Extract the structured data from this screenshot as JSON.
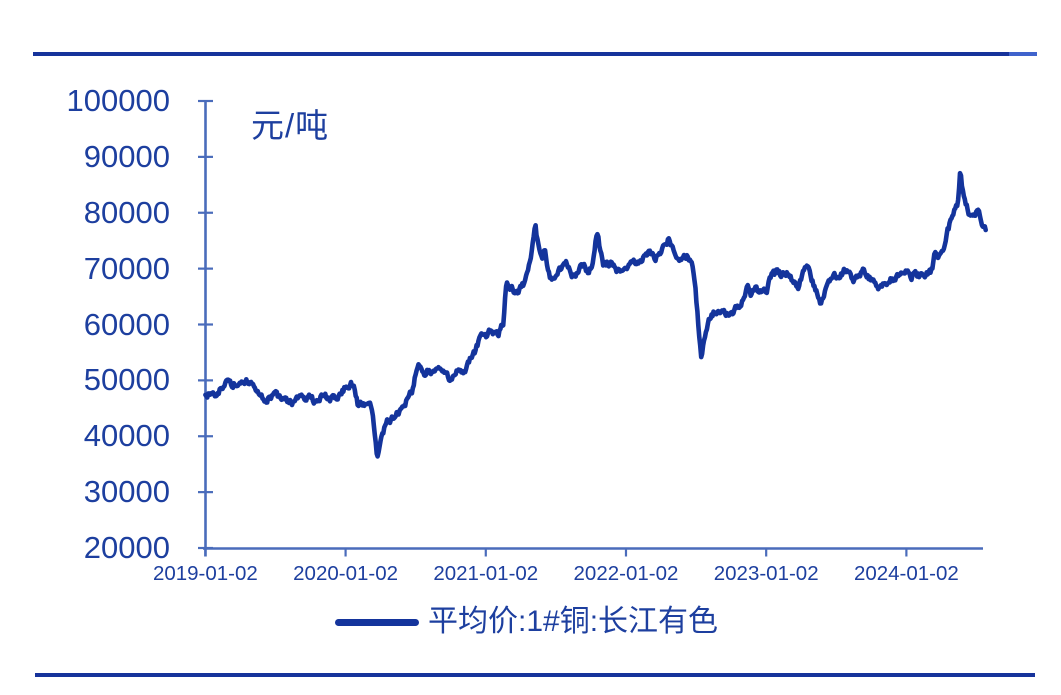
{
  "chart_data": {
    "type": "line",
    "unit_label": "元/吨",
    "legend": {
      "label": "平均价:1#铜:长江有色"
    },
    "grid": "off",
    "legend_position": "bottom-center",
    "y_axis": {
      "min": 20000,
      "max": 100000,
      "step": 10000,
      "ticks": [
        100000,
        90000,
        80000,
        70000,
        60000,
        50000,
        40000,
        30000,
        20000
      ]
    },
    "x_axis": {
      "ticks": [
        "2019-01-02",
        "2020-01-02",
        "2021-01-02",
        "2022-01-02",
        "2023-01-02",
        "2024-01-02"
      ]
    },
    "colors": {
      "line": "#14349c",
      "axis": "#4a6cbb",
      "text": "#1d3f9f",
      "rule": "#16339b",
      "rule_end": "#3f63cc"
    },
    "series": [
      {
        "name": "平均价:1#铜:长江有色",
        "color": "#14349c",
        "points": [
          [
            "2019-01-02",
            47000
          ],
          [
            "2019-01-10",
            47500
          ],
          [
            "2019-01-22",
            47900
          ],
          [
            "2019-02-01",
            47600
          ],
          [
            "2019-02-13",
            48600
          ],
          [
            "2019-02-25",
            49600
          ],
          [
            "2019-03-08",
            49100
          ],
          [
            "2019-03-20",
            49400
          ],
          [
            "2019-04-01",
            49200
          ],
          [
            "2019-04-17",
            49900
          ],
          [
            "2019-04-29",
            49300
          ],
          [
            "2019-05-10",
            48100
          ],
          [
            "2019-05-24",
            47300
          ],
          [
            "2019-06-07",
            46500
          ],
          [
            "2019-06-21",
            47200
          ],
          [
            "2019-07-03",
            47400
          ],
          [
            "2019-07-17",
            46900
          ],
          [
            "2019-08-01",
            46300
          ],
          [
            "2019-08-15",
            46200
          ],
          [
            "2019-08-29",
            46500
          ],
          [
            "2019-09-10",
            47300
          ],
          [
            "2019-09-24",
            46900
          ],
          [
            "2019-10-10",
            46400
          ],
          [
            "2019-10-24",
            46700
          ],
          [
            "2019-11-06",
            47200
          ],
          [
            "2019-11-20",
            46700
          ],
          [
            "2019-12-04",
            46900
          ],
          [
            "2019-12-18",
            47700
          ],
          [
            "2020-01-03",
            48700
          ],
          [
            "2020-01-16",
            49200
          ],
          [
            "2020-01-23",
            48800
          ],
          [
            "2020-02-03",
            45500
          ],
          [
            "2020-02-12",
            46000
          ],
          [
            "2020-02-24",
            45900
          ],
          [
            "2020-03-05",
            45300
          ],
          [
            "2020-03-13",
            43800
          ],
          [
            "2020-03-19",
            39500
          ],
          [
            "2020-03-24",
            35900
          ],
          [
            "2020-03-31",
            38900
          ],
          [
            "2020-04-08",
            40600
          ],
          [
            "2020-04-17",
            42400
          ],
          [
            "2020-04-28",
            42900
          ],
          [
            "2020-05-11",
            43900
          ],
          [
            "2020-05-22",
            44300
          ],
          [
            "2020-06-03",
            45600
          ],
          [
            "2020-06-17",
            47300
          ],
          [
            "2020-06-24",
            47800
          ],
          [
            "2020-07-03",
            51500
          ],
          [
            "2020-07-10",
            52800
          ],
          [
            "2020-07-24",
            51400
          ],
          [
            "2020-08-06",
            51800
          ],
          [
            "2020-08-19",
            51200
          ],
          [
            "2020-09-01",
            52600
          ],
          [
            "2020-09-14",
            52000
          ],
          [
            "2020-09-28",
            50700
          ],
          [
            "2020-10-13",
            51300
          ],
          [
            "2020-10-26",
            51700
          ],
          [
            "2020-11-06",
            51600
          ],
          [
            "2020-11-18",
            52800
          ],
          [
            "2020-12-04",
            55200
          ],
          [
            "2020-12-15",
            57200
          ],
          [
            "2020-12-28",
            58000
          ],
          [
            "2021-01-06",
            58200
          ],
          [
            "2021-01-14",
            59300
          ],
          [
            "2021-01-27",
            58600
          ],
          [
            "2021-02-04",
            58300
          ],
          [
            "2021-02-18",
            60500
          ],
          [
            "2021-02-22",
            64500
          ],
          [
            "2021-02-25",
            66900
          ],
          [
            "2021-03-10",
            66500
          ],
          [
            "2021-03-25",
            65600
          ],
          [
            "2021-04-09",
            67200
          ],
          [
            "2021-04-20",
            69300
          ],
          [
            "2021-04-29",
            72000
          ],
          [
            "2021-05-10",
            77600
          ],
          [
            "2021-05-14",
            75200
          ],
          [
            "2021-05-20",
            73900
          ],
          [
            "2021-05-27",
            72200
          ],
          [
            "2021-06-03",
            73200
          ],
          [
            "2021-06-18",
            67900
          ],
          [
            "2021-07-02",
            68800
          ],
          [
            "2021-07-15",
            69800
          ],
          [
            "2021-07-30",
            70900
          ],
          [
            "2021-08-12",
            69200
          ],
          [
            "2021-08-20",
            68300
          ],
          [
            "2021-09-02",
            70000
          ],
          [
            "2021-09-13",
            70800
          ],
          [
            "2021-09-24",
            68900
          ],
          [
            "2021-10-08",
            71500
          ],
          [
            "2021-10-18",
            76400
          ],
          [
            "2021-10-26",
            73500
          ],
          [
            "2021-11-03",
            70300
          ],
          [
            "2021-11-15",
            71000
          ],
          [
            "2021-11-26",
            70400
          ],
          [
            "2021-12-09",
            69700
          ],
          [
            "2021-12-22",
            69900
          ],
          [
            "2022-01-05",
            70300
          ],
          [
            "2022-01-19",
            71200
          ],
          [
            "2022-02-07",
            70600
          ],
          [
            "2022-02-18",
            71700
          ],
          [
            "2022-03-04",
            72900
          ],
          [
            "2022-03-16",
            71500
          ],
          [
            "2022-03-30",
            72800
          ],
          [
            "2022-04-12",
            74000
          ],
          [
            "2022-04-21",
            75200
          ],
          [
            "2022-05-05",
            73200
          ],
          [
            "2022-05-16",
            71000
          ],
          [
            "2022-05-27",
            71900
          ],
          [
            "2022-06-09",
            72500
          ],
          [
            "2022-06-20",
            70800
          ],
          [
            "2022-06-28",
            68300
          ],
          [
            "2022-07-06",
            62000
          ],
          [
            "2022-07-15",
            54300
          ],
          [
            "2022-07-22",
            57100
          ],
          [
            "2022-08-03",
            60200
          ],
          [
            "2022-08-16",
            61900
          ],
          [
            "2022-08-30",
            62300
          ],
          [
            "2022-09-13",
            62000
          ],
          [
            "2022-09-27",
            61800
          ],
          [
            "2022-10-12",
            62600
          ],
          [
            "2022-10-25",
            63400
          ],
          [
            "2022-11-04",
            65000
          ],
          [
            "2022-11-14",
            67000
          ],
          [
            "2022-11-23",
            65500
          ],
          [
            "2022-12-06",
            66200
          ],
          [
            "2022-12-20",
            65800
          ],
          [
            "2023-01-04",
            66300
          ],
          [
            "2023-01-17",
            69000
          ],
          [
            "2023-01-31",
            69200
          ],
          [
            "2023-02-14",
            68700
          ],
          [
            "2023-02-27",
            69200
          ],
          [
            "2023-03-13",
            67500
          ],
          [
            "2023-03-24",
            66200
          ],
          [
            "2023-04-06",
            69000
          ],
          [
            "2023-04-18",
            70100
          ],
          [
            "2023-05-02",
            67300
          ],
          [
            "2023-05-16",
            65400
          ],
          [
            "2023-05-24",
            63900
          ],
          [
            "2023-06-06",
            66600
          ],
          [
            "2023-06-20",
            68500
          ],
          [
            "2023-07-04",
            68700
          ],
          [
            "2023-07-18",
            69300
          ],
          [
            "2023-08-01",
            70000
          ],
          [
            "2023-08-15",
            68100
          ],
          [
            "2023-08-29",
            68900
          ],
          [
            "2023-09-12",
            69900
          ],
          [
            "2023-09-26",
            68400
          ],
          [
            "2023-10-11",
            67100
          ],
          [
            "2023-10-24",
            66800
          ],
          [
            "2023-11-07",
            67600
          ],
          [
            "2023-11-21",
            68200
          ],
          [
            "2023-12-05",
            68400
          ],
          [
            "2023-12-19",
            68900
          ],
          [
            "2024-01-03",
            69300
          ],
          [
            "2024-01-17",
            68600
          ],
          [
            "2024-01-31",
            68900
          ],
          [
            "2024-02-08",
            68700
          ],
          [
            "2024-02-23",
            69100
          ],
          [
            "2024-03-08",
            69800
          ],
          [
            "2024-03-15",
            72400
          ],
          [
            "2024-03-27",
            72300
          ],
          [
            "2024-04-10",
            74600
          ],
          [
            "2024-04-23",
            77800
          ],
          [
            "2024-05-07",
            80300
          ],
          [
            "2024-05-14",
            81500
          ],
          [
            "2024-05-21",
            87600
          ],
          [
            "2024-05-24",
            84800
          ],
          [
            "2024-05-31",
            83000
          ],
          [
            "2024-06-11",
            80300
          ],
          [
            "2024-06-21",
            79200
          ],
          [
            "2024-07-02",
            80400
          ],
          [
            "2024-07-11",
            79500
          ],
          [
            "2024-07-19",
            78000
          ],
          [
            "2024-07-26",
            77300
          ]
        ]
      }
    ]
  }
}
